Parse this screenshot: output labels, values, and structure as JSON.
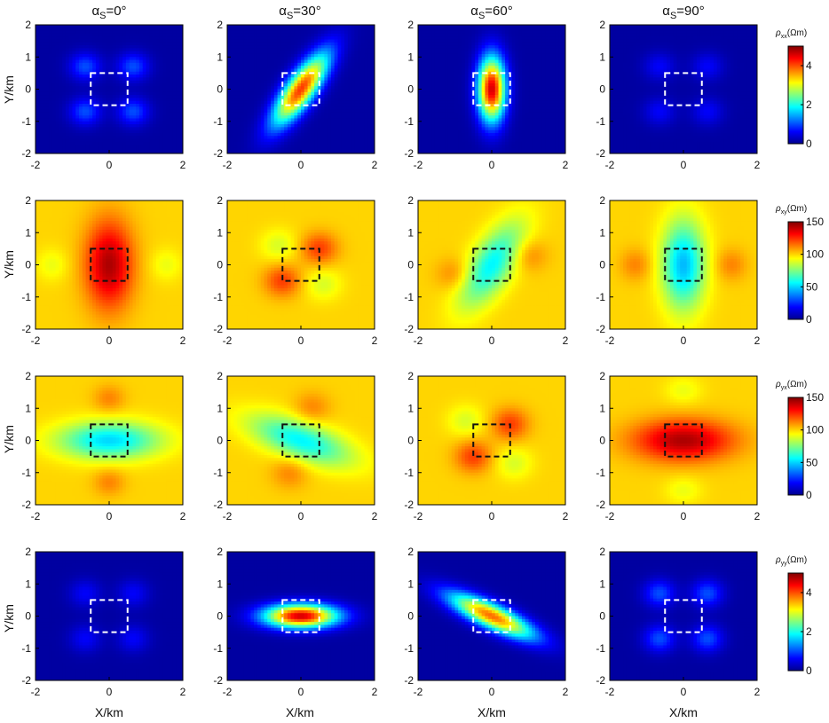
{
  "figure": {
    "columns": [
      {
        "label_prefix": "α",
        "label_sub": "S",
        "label_suffix": "=0°"
      },
      {
        "label_prefix": "α",
        "label_sub": "S",
        "label_suffix": "=30°"
      },
      {
        "label_prefix": "α",
        "label_sub": "S",
        "label_suffix": "=60°"
      },
      {
        "label_prefix": "α",
        "label_sub": "S",
        "label_suffix": "=90°"
      }
    ],
    "ylabel": "Y/km",
    "xlabel": "X/km",
    "colormap": [
      "#00008f",
      "#0000ff",
      "#0080ff",
      "#00ffff",
      "#80ff80",
      "#ffff00",
      "#ff8000",
      "#ff0000",
      "#800000"
    ],
    "colorbars": [
      {
        "label_sym": "ρ",
        "label_sub": "xx",
        "label_unit": "(Ωm)",
        "ticks": [
          "4",
          "2",
          "0"
        ],
        "min": 0,
        "max": 5
      },
      {
        "label_sym": "ρ",
        "label_sub": "xy",
        "label_unit": "(Ωm)",
        "ticks": [
          "150",
          "100",
          "50",
          "0"
        ],
        "min": 0,
        "max": 150
      },
      {
        "label_sym": "ρ",
        "label_sub": "yx",
        "label_unit": "(Ωm)",
        "ticks": [
          "150",
          "100",
          "50",
          "0"
        ],
        "min": 0,
        "max": 150
      },
      {
        "label_sym": "ρ",
        "label_sub": "yy",
        "label_unit": "(Ωm)",
        "ticks": [
          "4",
          "2",
          "0"
        ],
        "min": 0,
        "max": 5
      }
    ]
  },
  "chart_data": {
    "type": "heatmap",
    "rows": [
      "ρxx",
      "ρxy",
      "ρyx",
      "ρyy"
    ],
    "columns": [
      "αS=0°",
      "αS=30°",
      "αS=60°",
      "αS=90°"
    ],
    "xlim": [
      -2,
      2
    ],
    "ylim": [
      -2,
      2
    ],
    "xticks": [
      "-2",
      "0",
      "2"
    ],
    "yticks": [
      "2",
      "1",
      "0",
      "-1",
      "-2"
    ],
    "anomaly_box": {
      "x": [
        -0.5,
        0.5
      ],
      "y": [
        -0.5,
        0.5
      ]
    },
    "background": {
      "rho_xx": 0,
      "rho_xy": 100,
      "rho_yx": 100,
      "rho_yy": 0
    },
    "panels": [
      {
        "row": "ρxx",
        "column": "αS=0°",
        "peak_value": 1.0
      },
      {
        "row": "ρxx",
        "column": "αS=30°",
        "peak_value": 4.0
      },
      {
        "row": "ρxx",
        "column": "αS=60°",
        "peak_value": 4.5
      },
      {
        "row": "ρxx",
        "column": "αS=90°",
        "peak_value": 0.5
      },
      {
        "row": "ρxy",
        "column": "αS=0°",
        "peak_value": 140
      },
      {
        "row": "ρxy",
        "column": "αS=30°",
        "peak_value": 125
      },
      {
        "row": "ρxy",
        "column": "αS=60°",
        "min_value": 55
      },
      {
        "row": "ρxy",
        "column": "αS=90°",
        "min_value": 45
      },
      {
        "row": "ρyx",
        "column": "αS=0°",
        "min_value": 50
      },
      {
        "row": "ρyx",
        "column": "αS=30°",
        "min_value": 55
      },
      {
        "row": "ρyx",
        "column": "αS=60°",
        "peak_value": 125
      },
      {
        "row": "ρyx",
        "column": "αS=90°",
        "peak_value": 140
      },
      {
        "row": "ρyy",
        "column": "αS=0°",
        "peak_value": 0.5
      },
      {
        "row": "ρyy",
        "column": "αS=30°",
        "peak_value": 4.5
      },
      {
        "row": "ρyy",
        "column": "αS=60°",
        "peak_value": 3.5
      },
      {
        "row": "ρyy",
        "column": "αS=90°",
        "peak_value": 1.0
      }
    ]
  }
}
